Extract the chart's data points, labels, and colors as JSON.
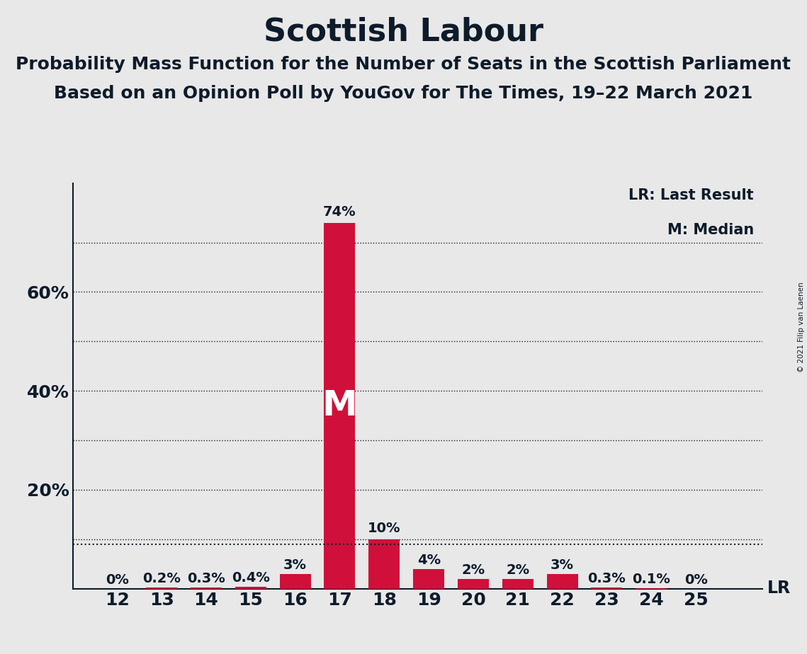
{
  "title": "Scottish Labour",
  "subtitle1": "Probability Mass Function for the Number of Seats in the Scottish Parliament",
  "subtitle2": "Based on an Opinion Poll by YouGov for The Times, 19–22 March 2021",
  "copyright": "© 2021 Filip van Laenen",
  "seats": [
    12,
    13,
    14,
    15,
    16,
    17,
    18,
    19,
    20,
    21,
    22,
    23,
    24,
    25
  ],
  "probabilities": [
    0.0,
    0.2,
    0.3,
    0.4,
    3.0,
    74.0,
    10.0,
    4.0,
    2.0,
    2.0,
    3.0,
    0.3,
    0.1,
    0.0
  ],
  "bar_color": "#D0103A",
  "median_seat": 17,
  "last_result_value": 9.0,
  "background_color": "#E8E8E8",
  "text_color": "#0D1B2A",
  "yticks": [
    10,
    20,
    30,
    40,
    50,
    60,
    70
  ],
  "ytick_labels": [
    "",
    "20%",
    "",
    "40%",
    "",
    "60%",
    ""
  ],
  "ylim": [
    0,
    82
  ],
  "grid_values": [
    10,
    20,
    30,
    40,
    50,
    60,
    70
  ],
  "annotation_fontsize": 14,
  "title_fontsize": 32,
  "subtitle_fontsize": 18,
  "tick_fontsize": 18,
  "legend_fontsize": 15,
  "lr_label_fontsize": 17,
  "m_fontsize": 36
}
